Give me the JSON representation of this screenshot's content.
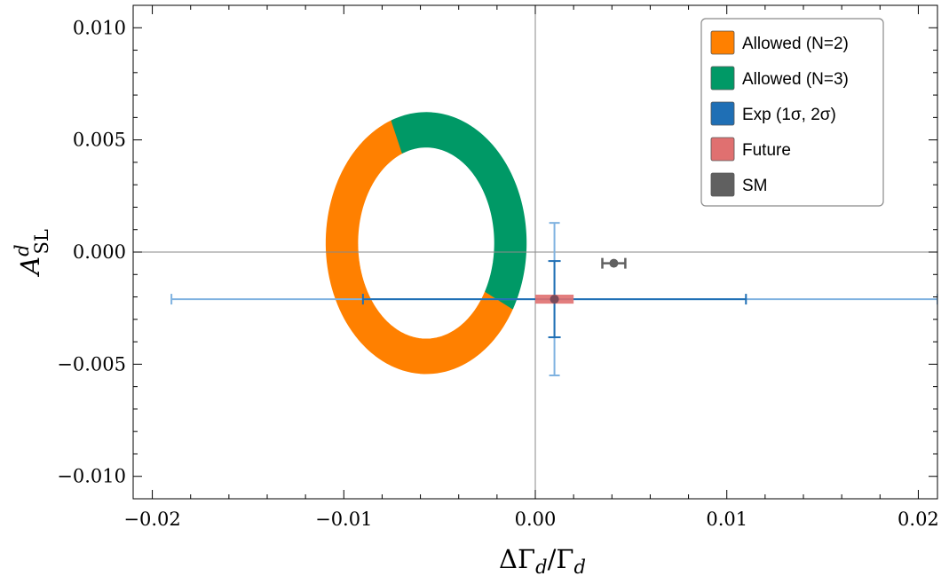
{
  "chart_data": {
    "type": "scatter",
    "title": "",
    "xlabel": "ΔΓ_d/Γ_d",
    "ylabel": "A^d_SL",
    "xlim": [
      -0.021,
      0.021
    ],
    "ylim": [
      -0.011,
      0.011
    ],
    "x_ticks": [
      {
        "value": -0.02,
        "label": "−0.02"
      },
      {
        "value": -0.01,
        "label": "−0.01"
      },
      {
        "value": 0.0,
        "label": "0.00"
      },
      {
        "value": 0.01,
        "label": "0.01"
      },
      {
        "value": 0.02,
        "label": "0.02"
      }
    ],
    "y_ticks": [
      {
        "value": 0.01,
        "label": "0.010"
      },
      {
        "value": 0.005,
        "label": "0.005"
      },
      {
        "value": 0.0,
        "label": "0.000"
      },
      {
        "value": -0.005,
        "label": "−0.005"
      },
      {
        "value": -0.01,
        "label": "−0.010"
      }
    ],
    "legend_position": "top-right",
    "series": [
      {
        "name": "Allowed (N=2)",
        "kind": "elliptical-ring",
        "color": "#FF8000",
        "center": [
          -0.0057,
          0.0004
        ],
        "outer_radii": [
          0.0052,
          0.0058
        ],
        "inner_radii": [
          0.0036,
          0.0043
        ],
        "angle_range_deg": [
          110,
          330
        ]
      },
      {
        "name": "Allowed (N=3)",
        "kind": "elliptical-ring",
        "color": "#009966",
        "center": [
          -0.0057,
          0.0004
        ],
        "outer_radii": [
          0.0052,
          0.0058
        ],
        "inner_radii": [
          0.0036,
          0.0043
        ],
        "angle_range_deg": [
          -30,
          110
        ]
      },
      {
        "name": "Exp (1σ, 2σ)",
        "kind": "error-cross",
        "color": "#1F6FB5",
        "light_color": "#7FB2E0",
        "point": [
          0.001,
          -0.0021
        ],
        "x_err_1sigma": 0.01,
        "x_err_2sigma": 0.02,
        "y_err_1sigma": 0.0017,
        "y_err_2sigma": 0.0034
      },
      {
        "name": "Future",
        "kind": "box",
        "color": "#E07070",
        "point": [
          0.001,
          -0.0021
        ],
        "x_half_width": 0.001,
        "y_half_height": 0.0002
      },
      {
        "name": "SM",
        "kind": "point-xerr",
        "color": "#606060",
        "point": [
          0.0041,
          -0.0005
        ],
        "x_err": 0.0006
      }
    ]
  }
}
